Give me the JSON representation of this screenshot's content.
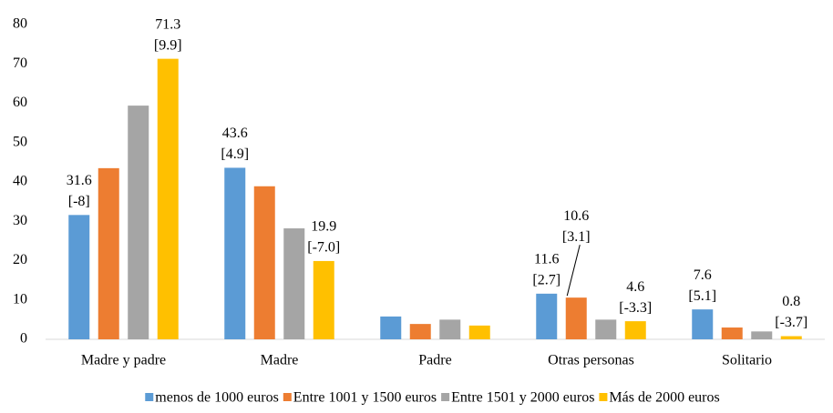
{
  "chart_data": {
    "type": "bar",
    "categories": [
      "Madre y padre",
      "Madre",
      "Padre",
      "Otras personas",
      "Solitario"
    ],
    "series": [
      {
        "name": "menos de 1000 euros",
        "color": "#5b9bd5",
        "values": [
          31.6,
          43.6,
          5.8,
          11.6,
          7.6
        ],
        "value_labels": [
          "31.6",
          "43.6",
          null,
          "11.6",
          "7.6"
        ],
        "brackets": [
          "[-8]",
          "[4.9]",
          null,
          "[2.7]",
          "[5.1]"
        ]
      },
      {
        "name": "Entre 1001 y 1500 euros",
        "color": "#ed7d31",
        "values": [
          43.5,
          38.9,
          3.9,
          10.6,
          3.0
        ],
        "value_labels": [
          null,
          null,
          null,
          "10.6",
          null
        ],
        "brackets": [
          null,
          null,
          null,
          "[3.1]",
          null
        ]
      },
      {
        "name": "Entre 1501 y 2000 euros",
        "color": "#a5a5a5",
        "values": [
          59.4,
          28.2,
          5.0,
          5.0,
          2.0
        ]
      },
      {
        "name": "Más de 2000 euros",
        "color": "#ffc000",
        "values": [
          71.3,
          19.9,
          3.5,
          4.6,
          0.8
        ],
        "value_labels": [
          "71.3",
          "19.9",
          null,
          "4.6",
          "0.8"
        ],
        "brackets": [
          "[9.9]",
          "[-7.0]",
          null,
          "[-3.3]",
          "[-3.7]"
        ]
      }
    ],
    "ylim": [
      0,
      80
    ],
    "yticks": [
      0,
      10,
      20,
      30,
      40,
      50,
      60,
      70,
      80
    ],
    "grid": false,
    "legend": "bottom"
  }
}
